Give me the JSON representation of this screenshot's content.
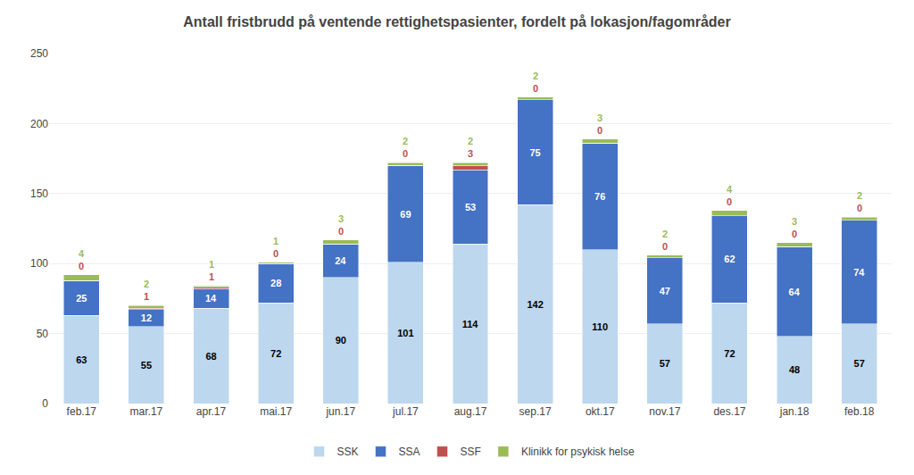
{
  "chart_data": {
    "type": "bar",
    "title": "Antall fristbrudd på ventende rettighetspasienter, fordelt på lokasjon/fagområder",
    "categories": [
      "feb.17",
      "mar.17",
      "apr.17",
      "mai.17",
      "jun.17",
      "jul.17",
      "aug.17",
      "sep.17",
      "okt.17",
      "nov.17",
      "des.17",
      "jan.18",
      "feb.18"
    ],
    "series": [
      {
        "name": "SSK",
        "color": "#BDD7EE",
        "values": [
          63,
          55,
          68,
          72,
          90,
          101,
          114,
          142,
          110,
          57,
          72,
          48,
          57
        ]
      },
      {
        "name": "SSA",
        "color": "#4472C4",
        "values": [
          25,
          12,
          14,
          28,
          24,
          69,
          53,
          75,
          76,
          47,
          62,
          64,
          74
        ]
      },
      {
        "name": "SSF",
        "color": "#C0504D",
        "values": [
          0,
          1,
          1,
          0,
          0,
          0,
          3,
          0,
          0,
          0,
          0,
          0,
          0
        ]
      },
      {
        "name": "Klinikk for psykisk helse",
        "color": "#9BBB59",
        "values": [
          4,
          2,
          1,
          1,
          3,
          2,
          2,
          2,
          3,
          2,
          4,
          3,
          2
        ]
      }
    ],
    "ylim": [
      0,
      250
    ],
    "yticks": [
      0,
      50,
      100,
      150,
      200,
      250
    ],
    "grid": true,
    "stacked": true,
    "data_labels": true,
    "legend": "bottom"
  }
}
